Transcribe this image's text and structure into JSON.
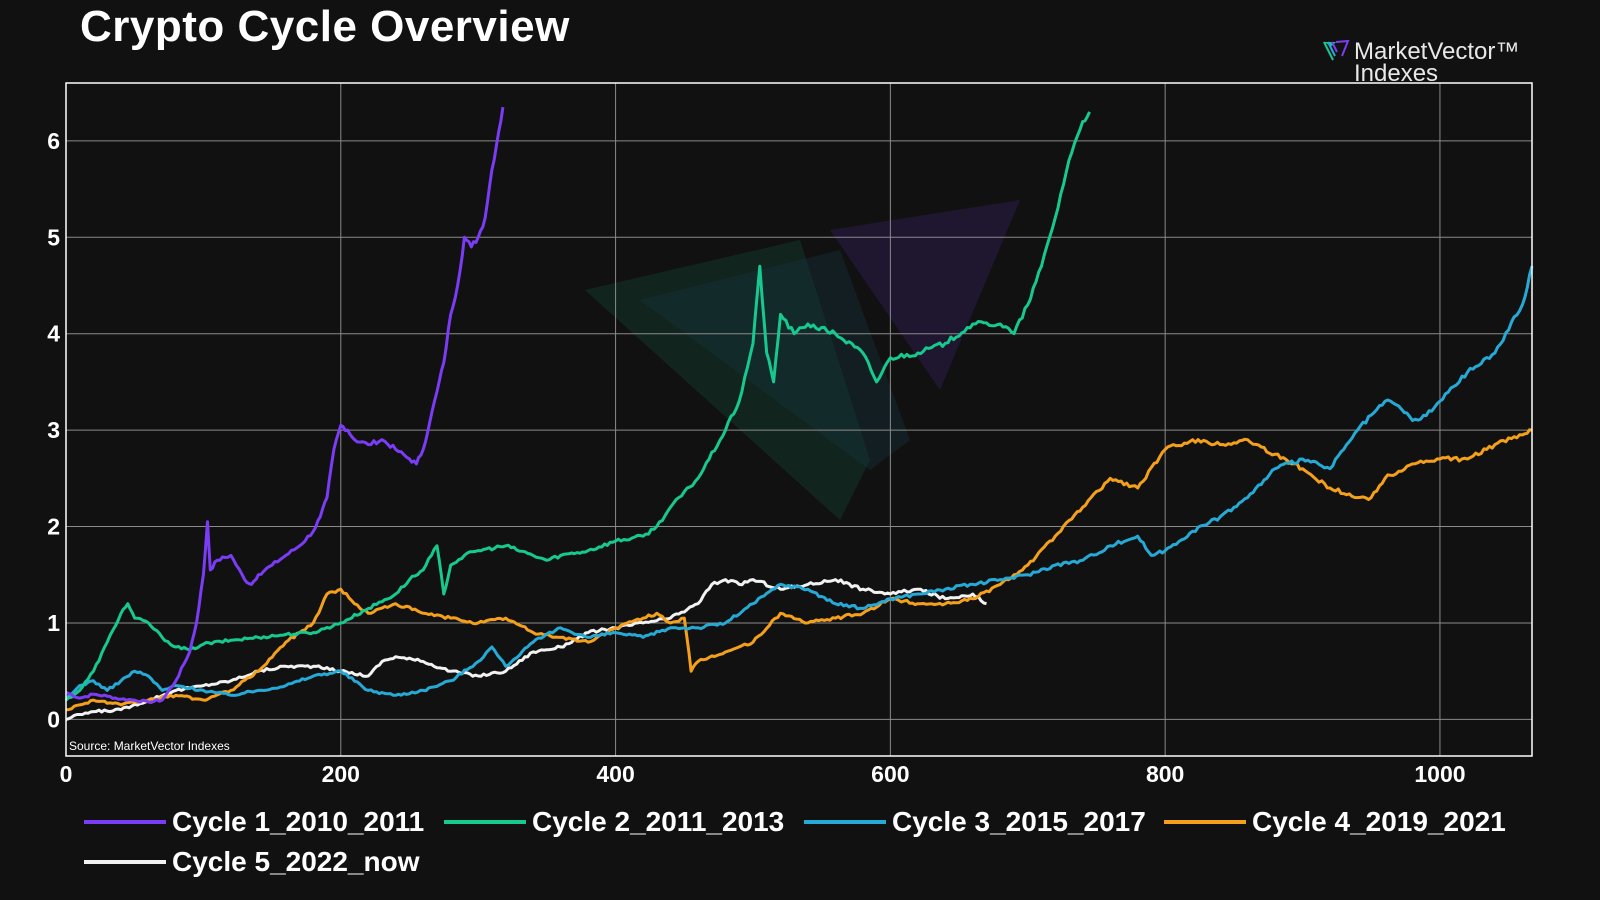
{
  "title": "Crypto Cycle Overview",
  "brand": {
    "line1": "MarketVector™",
    "line2": "Indexes"
  },
  "source": "Source: MarketVector Indexes",
  "colors": {
    "background": "#111111",
    "grid": "#8a8a8a",
    "cycle1": "#7b3cf5",
    "cycle2": "#17c98e",
    "cycle3": "#27a9d6",
    "cycle4": "#f5a01a",
    "cycle5": "#f2f2f2"
  },
  "chart_data": {
    "type": "line",
    "title": "Crypto Cycle Overview",
    "xlabel": "",
    "ylabel": "",
    "xlim": [
      0,
      1067
    ],
    "ylim": [
      -0.38,
      6.6
    ],
    "xticks": [
      0,
      200,
      400,
      600,
      800,
      1000
    ],
    "yticks": [
      0,
      1,
      2,
      3,
      4,
      5,
      6
    ],
    "grid": true,
    "legend": "bottom",
    "series": [
      {
        "name": "Cycle 1_2010_2011",
        "color": "#7b3cf5",
        "x": [
          0,
          10,
          20,
          30,
          40,
          50,
          60,
          70,
          80,
          90,
          95,
          100,
          103,
          105,
          110,
          120,
          130,
          135,
          140,
          150,
          160,
          170,
          180,
          185,
          190,
          195,
          200,
          205,
          210,
          220,
          230,
          240,
          250,
          255,
          260,
          265,
          270,
          275,
          280,
          285,
          290,
          295,
          300,
          305,
          310,
          315,
          318
        ],
        "y": [
          0.28,
          0.22,
          0.26,
          0.24,
          0.21,
          0.2,
          0.18,
          0.2,
          0.4,
          0.7,
          1.0,
          1.5,
          2.05,
          1.55,
          1.65,
          1.7,
          1.45,
          1.4,
          1.5,
          1.6,
          1.7,
          1.8,
          1.95,
          2.1,
          2.3,
          2.8,
          3.05,
          3.0,
          2.9,
          2.85,
          2.9,
          2.8,
          2.7,
          2.65,
          2.8,
          3.1,
          3.4,
          3.7,
          4.2,
          4.5,
          5.0,
          4.9,
          5.0,
          5.2,
          5.7,
          6.1,
          6.35
        ]
      },
      {
        "name": "Cycle 2_2011_2013",
        "color": "#17c98e",
        "x": [
          0,
          10,
          20,
          30,
          40,
          45,
          50,
          60,
          70,
          80,
          90,
          100,
          120,
          140,
          160,
          180,
          200,
          220,
          240,
          250,
          260,
          270,
          275,
          280,
          290,
          300,
          320,
          340,
          350,
          360,
          380,
          400,
          420,
          430,
          440,
          460,
          480,
          490,
          500,
          505,
          510,
          515,
          520,
          530,
          540,
          560,
          580,
          590,
          600,
          620,
          640,
          660,
          680,
          690,
          700,
          710,
          720,
          730,
          740,
          745
        ],
        "y": [
          0.2,
          0.3,
          0.5,
          0.8,
          1.1,
          1.2,
          1.05,
          1.0,
          0.85,
          0.75,
          0.72,
          0.78,
          0.82,
          0.85,
          0.88,
          0.9,
          1.0,
          1.15,
          1.3,
          1.45,
          1.55,
          1.8,
          1.3,
          1.6,
          1.7,
          1.75,
          1.8,
          1.7,
          1.65,
          1.7,
          1.75,
          1.85,
          1.9,
          2.0,
          2.2,
          2.5,
          3.0,
          3.3,
          3.9,
          4.7,
          3.8,
          3.5,
          4.2,
          4.0,
          4.1,
          4.0,
          3.8,
          3.5,
          3.75,
          3.8,
          3.9,
          4.1,
          4.1,
          4.0,
          4.3,
          4.7,
          5.2,
          5.8,
          6.2,
          6.3
        ]
      },
      {
        "name": "Cycle 3_2015_2017",
        "color": "#27a9d6",
        "x": [
          0,
          10,
          20,
          30,
          40,
          50,
          60,
          70,
          80,
          100,
          120,
          140,
          160,
          180,
          200,
          220,
          240,
          260,
          280,
          300,
          310,
          320,
          340,
          360,
          380,
          400,
          420,
          440,
          460,
          480,
          500,
          520,
          540,
          560,
          580,
          600,
          620,
          640,
          660,
          680,
          700,
          720,
          740,
          760,
          780,
          790,
          800,
          820,
          840,
          860,
          880,
          900,
          920,
          940,
          960,
          970,
          980,
          990,
          1000,
          1020,
          1040,
          1060,
          1067
        ],
        "y": [
          0.2,
          0.35,
          0.4,
          0.3,
          0.4,
          0.5,
          0.45,
          0.3,
          0.35,
          0.3,
          0.25,
          0.3,
          0.35,
          0.45,
          0.5,
          0.3,
          0.25,
          0.3,
          0.4,
          0.6,
          0.75,
          0.55,
          0.8,
          0.95,
          0.85,
          0.9,
          0.85,
          0.95,
          0.95,
          1.0,
          1.2,
          1.4,
          1.35,
          1.2,
          1.15,
          1.25,
          1.3,
          1.35,
          1.4,
          1.45,
          1.5,
          1.6,
          1.65,
          1.8,
          1.9,
          1.7,
          1.75,
          1.95,
          2.1,
          2.3,
          2.6,
          2.7,
          2.6,
          3.0,
          3.3,
          3.25,
          3.1,
          3.15,
          3.3,
          3.6,
          3.8,
          4.3,
          4.7
        ]
      },
      {
        "name": "Cycle 4_2019_2021",
        "color": "#f5a01a",
        "x": [
          0,
          10,
          20,
          40,
          60,
          80,
          100,
          120,
          140,
          160,
          180,
          190,
          200,
          210,
          220,
          240,
          260,
          280,
          300,
          320,
          340,
          360,
          380,
          400,
          420,
          430,
          440,
          450,
          455,
          460,
          480,
          500,
          520,
          540,
          560,
          580,
          600,
          620,
          640,
          660,
          680,
          700,
          720,
          740,
          760,
          780,
          800,
          820,
          840,
          860,
          880,
          900,
          920,
          940,
          950,
          960,
          980,
          1000,
          1020,
          1040,
          1060,
          1067
        ],
        "y": [
          0.1,
          0.15,
          0.2,
          0.15,
          0.2,
          0.25,
          0.2,
          0.3,
          0.5,
          0.8,
          1.0,
          1.3,
          1.35,
          1.2,
          1.1,
          1.2,
          1.1,
          1.05,
          1.0,
          1.05,
          0.9,
          0.85,
          0.8,
          0.95,
          1.05,
          1.1,
          1.0,
          1.05,
          0.5,
          0.6,
          0.7,
          0.8,
          1.1,
          1.0,
          1.05,
          1.1,
          1.25,
          1.2,
          1.2,
          1.25,
          1.4,
          1.6,
          1.9,
          2.2,
          2.5,
          2.4,
          2.8,
          2.9,
          2.85,
          2.9,
          2.75,
          2.6,
          2.4,
          2.3,
          2.3,
          2.5,
          2.65,
          2.7,
          2.7,
          2.85,
          2.95,
          3.0
        ]
      },
      {
        "name": "Cycle 5_2022_now",
        "color": "#f2f2f2",
        "x": [
          0,
          10,
          20,
          40,
          60,
          80,
          100,
          120,
          140,
          160,
          180,
          200,
          220,
          230,
          240,
          260,
          280,
          300,
          320,
          340,
          360,
          380,
          400,
          420,
          440,
          460,
          470,
          480,
          490,
          500,
          520,
          540,
          560,
          580,
          600,
          620,
          640,
          660,
          670
        ],
        "y": [
          0.0,
          0.05,
          0.08,
          0.1,
          0.2,
          0.3,
          0.35,
          0.4,
          0.5,
          0.55,
          0.55,
          0.5,
          0.45,
          0.6,
          0.65,
          0.6,
          0.5,
          0.45,
          0.5,
          0.7,
          0.75,
          0.9,
          0.95,
          1.0,
          1.05,
          1.2,
          1.4,
          1.45,
          1.4,
          1.45,
          1.35,
          1.4,
          1.45,
          1.35,
          1.3,
          1.35,
          1.25,
          1.3,
          1.2
        ]
      }
    ]
  }
}
